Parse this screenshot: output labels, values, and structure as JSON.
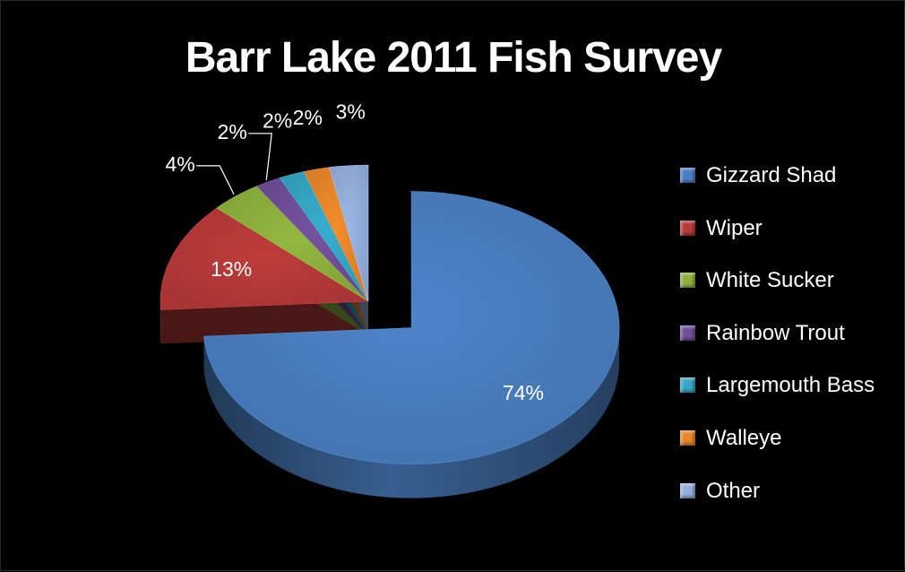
{
  "chart_data": {
    "type": "pie",
    "title": "Barr Lake 2011 Fish Survey",
    "slices": [
      {
        "name": "Gizzard Shad",
        "value": 74,
        "label": "74%",
        "color": "#4a7ec0"
      },
      {
        "name": "Wiper",
        "value": 13,
        "label": "13%",
        "color": "#b53a38"
      },
      {
        "name": "White Sucker",
        "value": 4,
        "label": "4%",
        "color": "#8db03e"
      },
      {
        "name": "Rainbow Trout",
        "value": 2,
        "label": "2%",
        "color": "#6f4e98"
      },
      {
        "name": "Largemouth Bass",
        "value": 2,
        "label": "2%",
        "color": "#35a6c4"
      },
      {
        "name": "Walleye",
        "value": 2,
        "label": "2%",
        "color": "#e8862a"
      },
      {
        "name": "Other",
        "value": 3,
        "label": "3%",
        "color": "#94aedb"
      }
    ],
    "exploded": [
      "Gizzard Shad"
    ],
    "legend_position": "right",
    "style": "3d"
  }
}
